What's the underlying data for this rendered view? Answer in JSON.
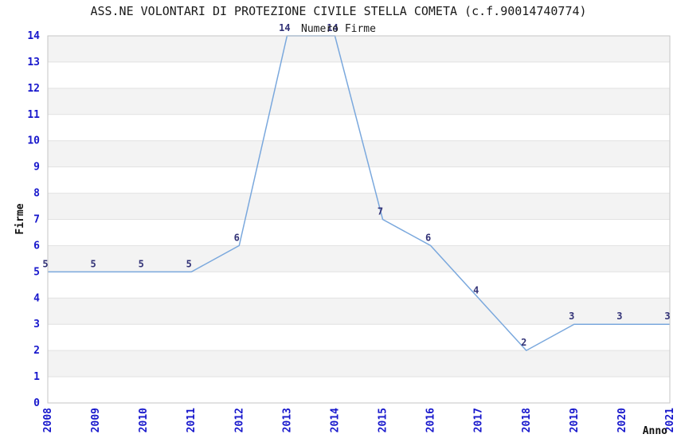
{
  "chart_data": {
    "type": "line",
    "title": "ASS.NE VOLONTARI DI PROTEZIONE CIVILE STELLA COMETA (c.f.90014740774)",
    "subtitle": "Numero Firme",
    "xlabel": "Anno",
    "ylabel": "Firme",
    "categories": [
      "2008",
      "2009",
      "2010",
      "2011",
      "2012",
      "2013",
      "2014",
      "2015",
      "2016",
      "2017",
      "2018",
      "2019",
      "2020",
      "2021"
    ],
    "series": [
      {
        "name": "Numero Firme",
        "values": [
          5,
          5,
          5,
          5,
          6,
          14,
          14,
          7,
          6,
          4,
          2,
          3,
          3,
          3
        ]
      }
    ],
    "ylim": [
      0,
      14
    ],
    "ytick_step": 1,
    "xtick_rotation": -90,
    "grid": "horizontal",
    "banded_rows": true,
    "legend": "none",
    "point_labels_visible": true,
    "colors": {
      "line": "#7aa8dd",
      "point_label": "#333377",
      "tick_label": "#1717cc",
      "band": "#f3f3f3",
      "gridline": "#e2e2e2",
      "plot_border": "#c6c6c6",
      "title_text": "#1a1a1a",
      "axis_title_text": "#111111"
    }
  }
}
